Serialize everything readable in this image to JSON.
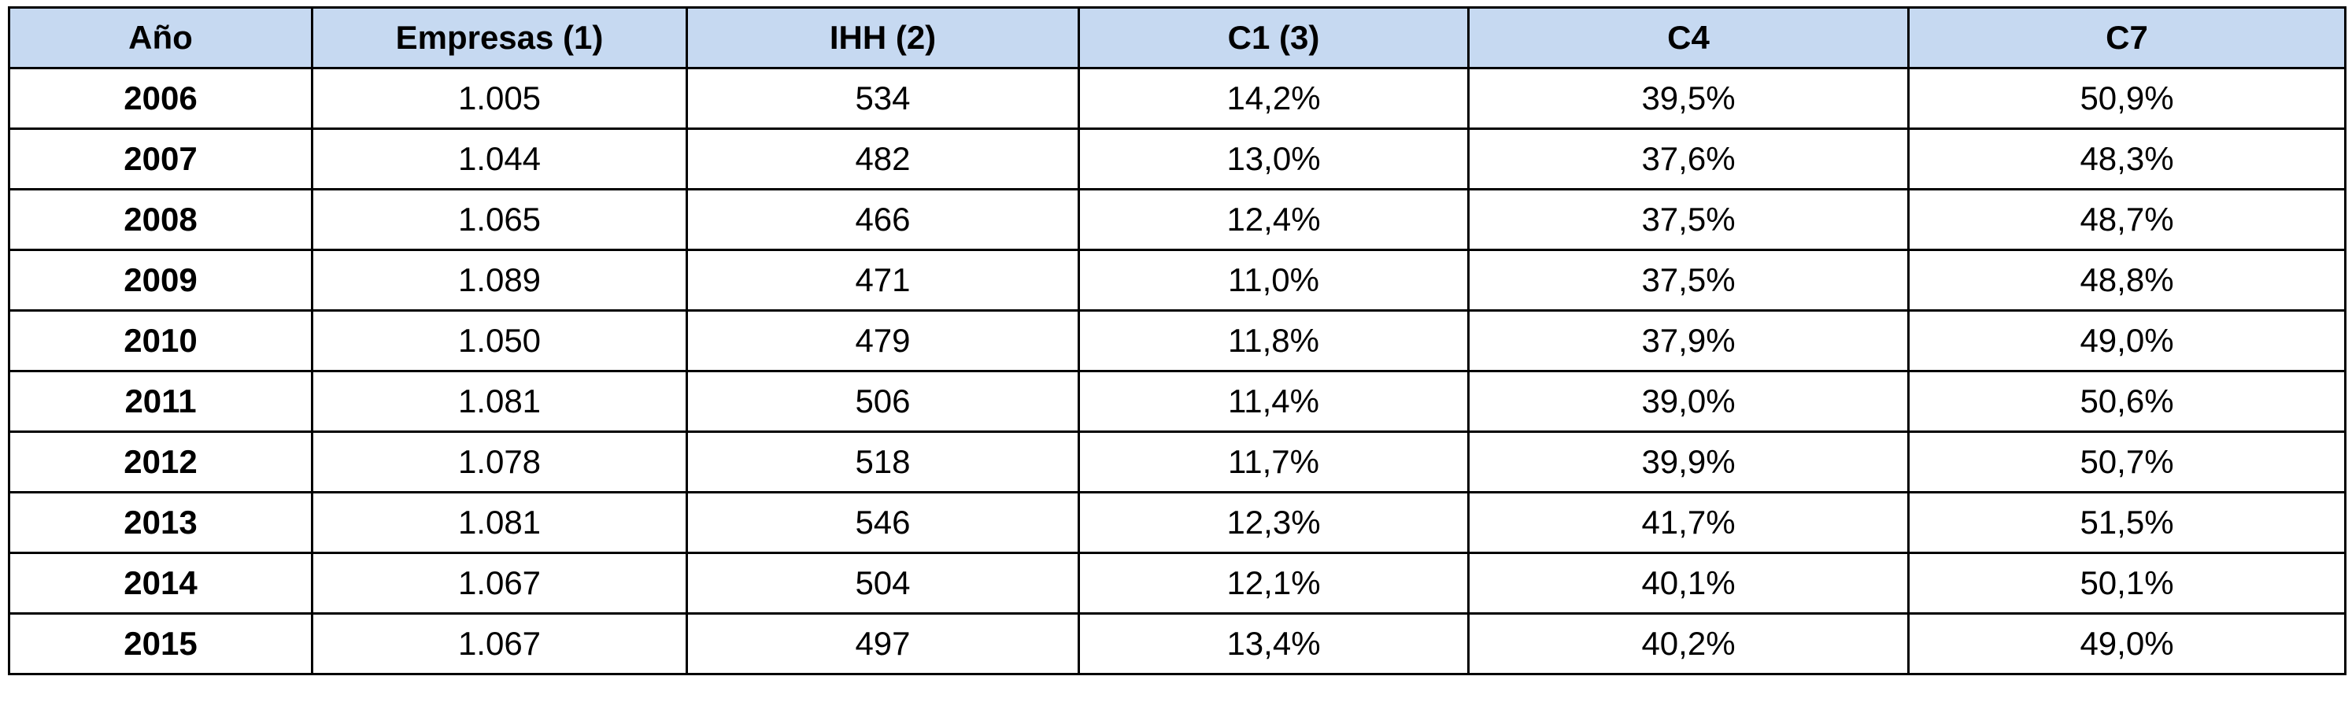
{
  "table": {
    "header": [
      "Año",
      "Empresas (1)",
      "IHH (2)",
      "C1 (3)",
      "C4",
      "C7"
    ],
    "rows": [
      [
        "2006",
        "1.005",
        "534",
        "14,2%",
        "39,5%",
        "50,9%"
      ],
      [
        "2007",
        "1.044",
        "482",
        "13,0%",
        "37,6%",
        "48,3%"
      ],
      [
        "2008",
        "1.065",
        "466",
        "12,4%",
        "37,5%",
        "48,7%"
      ],
      [
        "2009",
        "1.089",
        "471",
        "11,0%",
        "37,5%",
        "48,8%"
      ],
      [
        "2010",
        "1.050",
        "479",
        "11,8%",
        "37,9%",
        "49,0%"
      ],
      [
        "2011",
        "1.081",
        "506",
        "11,4%",
        "39,0%",
        "50,6%"
      ],
      [
        "2012",
        "1.078",
        "518",
        "11,7%",
        "39,9%",
        "50,7%"
      ],
      [
        "2013",
        "1.081",
        "546",
        "12,3%",
        "41,7%",
        "51,5%"
      ],
      [
        "2014",
        "1.067",
        "504",
        "12,1%",
        "40,1%",
        "50,1%"
      ],
      [
        "2015",
        "1.067",
        "497",
        "13,4%",
        "40,2%",
        "49,0%"
      ]
    ]
  }
}
